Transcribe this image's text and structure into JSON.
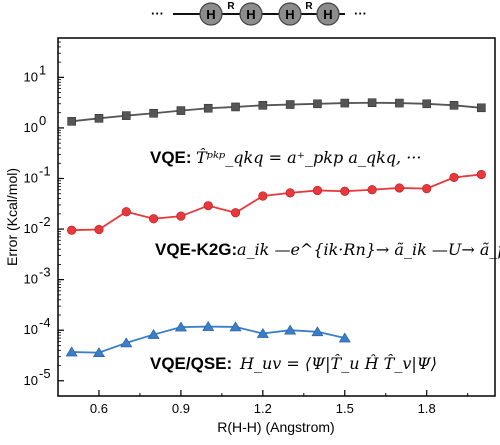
{
  "molecule": {
    "atoms": [
      "H",
      "H",
      "H",
      "H"
    ],
    "bond_labels": [
      "R",
      "R"
    ],
    "ellipsis": "···"
  },
  "chart_data": {
    "type": "line",
    "xlabel": "R(H-H) (Angstrom)",
    "ylabel": "Error (Kcal/mol)",
    "xlim": [
      0.45,
      2.05
    ],
    "ylim": [
      5e-06,
      60
    ],
    "yscale": "log",
    "xticks": [
      0.6,
      0.9,
      1.2,
      1.5,
      1.8
    ],
    "xtick_labels": [
      "0.6",
      "0.9",
      "1.2",
      "1.5",
      "1.8"
    ],
    "yticks": [
      1e-05,
      0.0001,
      0.001,
      0.01,
      0.1,
      1,
      10
    ],
    "ytick_labels": [
      {
        "base": "10",
        "exp": "-5"
      },
      {
        "base": "10",
        "exp": "-4"
      },
      {
        "base": "10",
        "exp": "-3"
      },
      {
        "base": "10",
        "exp": "-2"
      },
      {
        "base": "10",
        "exp": "-1"
      },
      {
        "base": "10",
        "exp": "0"
      },
      {
        "base": "10",
        "exp": "1"
      }
    ],
    "grid": false,
    "series": [
      {
        "color": "#555555",
        "marker": "square",
        "x": [
          0.5,
          0.6,
          0.7,
          0.8,
          0.9,
          1.0,
          1.1,
          1.2,
          1.3,
          1.4,
          1.5,
          1.6,
          1.7,
          1.8,
          1.9,
          2.0
        ],
        "y": [
          1.35,
          1.55,
          1.75,
          1.95,
          2.2,
          2.45,
          2.6,
          2.8,
          2.9,
          3.0,
          3.1,
          3.15,
          3.1,
          3.0,
          2.8,
          2.5
        ]
      },
      {
        "color": "#e8383b",
        "marker": "circle",
        "x": [
          0.5,
          0.6,
          0.7,
          0.8,
          0.9,
          1.0,
          1.1,
          1.2,
          1.3,
          1.4,
          1.5,
          1.6,
          1.7,
          1.8,
          1.9,
          2.0
        ],
        "y": [
          0.0095,
          0.0098,
          0.022,
          0.016,
          0.018,
          0.029,
          0.021,
          0.045,
          0.052,
          0.058,
          0.056,
          0.06,
          0.065,
          0.063,
          0.105,
          0.12
        ]
      },
      {
        "color": "#3a7dc9",
        "marker": "triangle",
        "x": [
          0.5,
          0.6,
          0.7,
          0.8,
          0.9,
          1.0,
          1.1,
          1.2,
          1.3,
          1.4,
          1.5
        ],
        "y": [
          3.7e-05,
          3.6e-05,
          5.6e-05,
          8.2e-05,
          0.000115,
          0.000118,
          0.000116,
          8.6e-05,
          0.0001,
          9.3e-05,
          7e-05
        ]
      }
    ],
    "annotations": [
      {
        "prefix": "VQE:",
        "formula": "T̂ᵖᵏᵖ_qkq = a⁺_pkp a_qkq, ···"
      },
      {
        "prefix": "VQE-K2G:",
        "formula": "a_ik —e^{ik·Rn}→ ã_ik —U→ ã_p"
      },
      {
        "prefix": "VQE/QSE:",
        "formula": "H_uv = ⟨Ψ|T̂_u Ĥ T̂_v|Ψ⟩"
      }
    ]
  }
}
